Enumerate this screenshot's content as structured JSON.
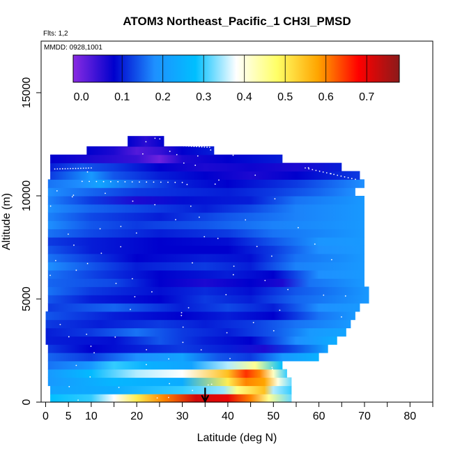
{
  "chart_data": {
    "type": "heatmap",
    "title": "ATOM3 Northeast_Pacific_1 CH3I_PMSD",
    "annotations": [
      "Flts: 1,2",
      "MMDD: 0928,1001"
    ],
    "xlabel": "Latitude (deg N)",
    "ylabel": "Altitude (m)",
    "xlim": [
      -1,
      85
    ],
    "ylim": [
      0,
      17500
    ],
    "x_ticks": [
      0,
      5,
      10,
      20,
      30,
      40,
      50,
      60,
      70,
      80
    ],
    "y_ticks": [
      0,
      5000,
      10000,
      15000
    ],
    "colorbar": {
      "range": [
        -0.02,
        0.78
      ],
      "ticks": [
        0.0,
        0.1,
        0.2,
        0.3,
        0.4,
        0.5,
        0.6,
        0.7
      ],
      "tick_labels": [
        "0.0",
        "0.1",
        "0.2",
        "0.3",
        "0.4",
        "0.5",
        "0.6",
        "0.7"
      ],
      "colors": [
        "#8a2be2",
        "#0000cd",
        "#1e90ff",
        "#00bfff",
        "#ffffff",
        "#ffff66",
        "#ffa500",
        "#ff0000",
        "#8b1a1a"
      ]
    },
    "marker": {
      "x": 35,
      "y_top": 700,
      "y_bottom": 0,
      "icon": "down-arrow-icon"
    },
    "curtain_bands": [
      {
        "y0": 0,
        "y1": 400,
        "x0": 1,
        "x1": 54,
        "stops": [
          [
            1,
            0.28
          ],
          [
            10,
            0.3
          ],
          [
            15,
            0.38
          ],
          [
            20,
            0.5
          ],
          [
            26,
            0.6
          ],
          [
            33,
            0.72
          ],
          [
            40,
            0.7
          ],
          [
            45,
            0.6
          ],
          [
            49,
            0.45
          ],
          [
            54,
            0.32
          ]
        ]
      },
      {
        "y0": 400,
        "y1": 800,
        "x0": 1,
        "x1": 54,
        "stops": [
          [
            1,
            0.22
          ],
          [
            15,
            0.24
          ],
          [
            30,
            0.3
          ],
          [
            39,
            0.34
          ],
          [
            42,
            0.46
          ],
          [
            48,
            0.55
          ],
          [
            50,
            0.35
          ],
          [
            54,
            0.3
          ]
        ]
      },
      {
        "y0": 800,
        "y1": 1200,
        "x0": 0.5,
        "x1": 54,
        "stops": [
          [
            0.5,
            0.2
          ],
          [
            15,
            0.26
          ],
          [
            30,
            0.24
          ],
          [
            40,
            0.5
          ],
          [
            44,
            0.6
          ],
          [
            48,
            0.58
          ],
          [
            51,
            0.4
          ],
          [
            54,
            0.32
          ]
        ]
      },
      {
        "y0": 1200,
        "y1": 1600,
        "x0": 0.5,
        "x1": 53,
        "stops": [
          [
            0.5,
            0.2
          ],
          [
            10,
            0.27
          ],
          [
            20,
            0.35
          ],
          [
            30,
            0.38
          ],
          [
            40,
            0.55
          ],
          [
            44,
            0.65
          ],
          [
            47,
            0.6
          ],
          [
            50,
            0.42
          ],
          [
            53,
            0.3
          ]
        ]
      },
      {
        "y0": 1600,
        "y1": 2000,
        "x0": 0.5,
        "x1": 52,
        "stops": [
          [
            0.5,
            0.16
          ],
          [
            10,
            0.2
          ],
          [
            15,
            0.3
          ],
          [
            22,
            0.25
          ],
          [
            32,
            0.22
          ],
          [
            40,
            0.35
          ],
          [
            46,
            0.45
          ],
          [
            52,
            0.28
          ]
        ]
      },
      {
        "y0": 2000,
        "y1": 2400,
        "x0": 0.5,
        "x1": 60,
        "stops": [
          [
            0.5,
            0.15
          ],
          [
            10,
            0.12
          ],
          [
            20,
            0.18
          ],
          [
            30,
            0.22
          ],
          [
            38,
            0.14
          ],
          [
            45,
            0.12
          ],
          [
            52,
            0.2
          ],
          [
            60,
            0.25
          ]
        ]
      },
      {
        "y0": 2400,
        "y1": 2800,
        "x0": 0.5,
        "x1": 62,
        "stops": [
          [
            0.5,
            0.12
          ],
          [
            10,
            0.08
          ],
          [
            20,
            0.1
          ],
          [
            30,
            0.12
          ],
          [
            40,
            0.1
          ],
          [
            48,
            0.06
          ],
          [
            53,
            0.12
          ],
          [
            62,
            0.22
          ]
        ]
      },
      {
        "y0": 2800,
        "y1": 3200,
        "x0": 0,
        "x1": 64,
        "stops": [
          [
            0,
            0.1
          ],
          [
            15,
            0.09
          ],
          [
            25,
            0.14
          ],
          [
            35,
            0.1
          ],
          [
            45,
            0.08
          ],
          [
            55,
            0.18
          ],
          [
            64,
            0.24
          ]
        ]
      },
      {
        "y0": 3200,
        "y1": 3600,
        "x0": 0,
        "x1": 66,
        "stops": [
          [
            0,
            0.1
          ],
          [
            10,
            0.12
          ],
          [
            20,
            0.16
          ],
          [
            30,
            0.12
          ],
          [
            40,
            0.1
          ],
          [
            50,
            0.14
          ],
          [
            58,
            0.2
          ],
          [
            66,
            0.22
          ]
        ]
      },
      {
        "y0": 3600,
        "y1": 4000,
        "x0": 0,
        "x1": 67,
        "stops": [
          [
            0,
            0.12
          ],
          [
            12,
            0.1
          ],
          [
            25,
            0.12
          ],
          [
            35,
            0.1
          ],
          [
            45,
            0.12
          ],
          [
            55,
            0.16
          ],
          [
            67,
            0.2
          ]
        ]
      },
      {
        "y0": 4000,
        "y1": 4400,
        "x0": 0,
        "x1": 68,
        "stops": [
          [
            0,
            0.14
          ],
          [
            15,
            0.1
          ],
          [
            30,
            0.08
          ],
          [
            40,
            0.1
          ],
          [
            50,
            0.08
          ],
          [
            60,
            0.16
          ],
          [
            68,
            0.2
          ]
        ]
      },
      {
        "y0": 4400,
        "y1": 4800,
        "x0": 0.5,
        "x1": 69,
        "stops": [
          [
            0.5,
            0.12
          ],
          [
            15,
            0.15
          ],
          [
            30,
            0.1
          ],
          [
            40,
            0.13
          ],
          [
            50,
            0.1
          ],
          [
            60,
            0.18
          ],
          [
            69,
            0.2
          ]
        ]
      },
      {
        "y0": 4800,
        "y1": 5200,
        "x0": 0.5,
        "x1": 71,
        "stops": [
          [
            0.5,
            0.14
          ],
          [
            10,
            0.1
          ],
          [
            25,
            0.08
          ],
          [
            35,
            0.12
          ],
          [
            45,
            0.1
          ],
          [
            55,
            0.15
          ],
          [
            71,
            0.2
          ]
        ]
      },
      {
        "y0": 5200,
        "y1": 5600,
        "x0": 0.5,
        "x1": 71,
        "stops": [
          [
            0.5,
            0.16
          ],
          [
            10,
            0.12
          ],
          [
            25,
            0.09
          ],
          [
            35,
            0.11
          ],
          [
            45,
            0.09
          ],
          [
            55,
            0.14
          ],
          [
            71,
            0.2
          ]
        ]
      },
      {
        "y0": 5600,
        "y1": 6000,
        "x0": 0.5,
        "x1": 70,
        "stops": [
          [
            0.5,
            0.15
          ],
          [
            15,
            0.13
          ],
          [
            25,
            0.08
          ],
          [
            35,
            0.06
          ],
          [
            45,
            0.08
          ],
          [
            52,
            0.06
          ],
          [
            58,
            0.16
          ],
          [
            70,
            0.2
          ]
        ]
      },
      {
        "y0": 6000,
        "y1": 6400,
        "x0": 0.5,
        "x1": 70,
        "stops": [
          [
            0.5,
            0.16
          ],
          [
            12,
            0.12
          ],
          [
            25,
            0.08
          ],
          [
            40,
            0.1
          ],
          [
            50,
            0.08
          ],
          [
            60,
            0.18
          ],
          [
            70,
            0.2
          ]
        ]
      },
      {
        "y0": 6400,
        "y1": 6800,
        "x0": 0.5,
        "x1": 70,
        "stops": [
          [
            0.5,
            0.18
          ],
          [
            10,
            0.14
          ],
          [
            20,
            0.1
          ],
          [
            35,
            0.12
          ],
          [
            45,
            0.1
          ],
          [
            55,
            0.17
          ],
          [
            70,
            0.2
          ]
        ]
      },
      {
        "y0": 6800,
        "y1": 7200,
        "x0": 0.5,
        "x1": 70,
        "stops": [
          [
            0.5,
            0.16
          ],
          [
            10,
            0.12
          ],
          [
            20,
            0.08
          ],
          [
            35,
            0.1
          ],
          [
            45,
            0.09
          ],
          [
            55,
            0.16
          ],
          [
            70,
            0.2
          ]
        ]
      },
      {
        "y0": 7200,
        "y1": 7600,
        "x0": 0.5,
        "x1": 70,
        "stops": [
          [
            0.5,
            0.14
          ],
          [
            10,
            0.1
          ],
          [
            25,
            0.08
          ],
          [
            40,
            0.08
          ],
          [
            50,
            0.12
          ],
          [
            60,
            0.18
          ],
          [
            70,
            0.2
          ]
        ]
      },
      {
        "y0": 7600,
        "y1": 8000,
        "x0": 0.5,
        "x1": 70,
        "stops": [
          [
            0.5,
            0.12
          ],
          [
            10,
            0.1
          ],
          [
            25,
            0.08
          ],
          [
            40,
            0.09
          ],
          [
            50,
            0.14
          ],
          [
            60,
            0.19
          ],
          [
            70,
            0.2
          ]
        ]
      },
      {
        "y0": 8000,
        "y1": 8400,
        "x0": 0.5,
        "x1": 70,
        "stops": [
          [
            0.5,
            0.16
          ],
          [
            10,
            0.13
          ],
          [
            25,
            0.1
          ],
          [
            40,
            0.12
          ],
          [
            50,
            0.16
          ],
          [
            70,
            0.2
          ]
        ]
      },
      {
        "y0": 8400,
        "y1": 8800,
        "x0": 0.5,
        "x1": 70,
        "stops": [
          [
            0.5,
            0.18
          ],
          [
            10,
            0.14
          ],
          [
            20,
            0.12
          ],
          [
            35,
            0.14
          ],
          [
            50,
            0.17
          ],
          [
            70,
            0.2
          ]
        ]
      },
      {
        "y0": 8800,
        "y1": 9200,
        "x0": 0.5,
        "x1": 70,
        "stops": [
          [
            0.5,
            0.17
          ],
          [
            10,
            0.13
          ],
          [
            25,
            0.1
          ],
          [
            40,
            0.14
          ],
          [
            55,
            0.17
          ],
          [
            70,
            0.2
          ]
        ]
      },
      {
        "y0": 9200,
        "y1": 9600,
        "x0": 0.5,
        "x1": 70,
        "stops": [
          [
            0.5,
            0.18
          ],
          [
            10,
            0.15
          ],
          [
            20,
            0.13
          ],
          [
            35,
            0.1
          ],
          [
            45,
            0.13
          ],
          [
            55,
            0.17
          ],
          [
            70,
            0.2
          ]
        ]
      },
      {
        "y0": 9600,
        "y1": 10000,
        "x0": 0.5,
        "x1": 70,
        "stops": [
          [
            0.5,
            0.17
          ],
          [
            10,
            0.12
          ],
          [
            20,
            0.06
          ],
          [
            30,
            0.09
          ],
          [
            45,
            0.1
          ],
          [
            55,
            0.16
          ],
          [
            70,
            0.2
          ]
        ]
      },
      {
        "y0": 10000,
        "y1": 10400,
        "x0": 0.5,
        "x1": 68,
        "stops": [
          [
            0.5,
            0.18
          ],
          [
            10,
            0.15
          ],
          [
            20,
            0.12
          ],
          [
            30,
            0.11
          ],
          [
            40,
            0.1
          ],
          [
            50,
            0.12
          ],
          [
            60,
            0.15
          ],
          [
            68,
            0.18
          ]
        ]
      },
      {
        "y0": 10400,
        "y1": 10800,
        "x0": 0.5,
        "x1": 70,
        "stops": [
          [
            0.5,
            0.16
          ],
          [
            8,
            0.18
          ],
          [
            12,
            0.22
          ],
          [
            20,
            0.15
          ],
          [
            30,
            0.1
          ],
          [
            40,
            0.08
          ],
          [
            55,
            0.12
          ],
          [
            70,
            0.18
          ]
        ]
      },
      {
        "y0": 10800,
        "y1": 11200,
        "x0": 1,
        "x1": 69,
        "stops": [
          [
            1,
            0.12
          ],
          [
            10,
            0.2
          ],
          [
            15,
            0.14
          ],
          [
            25,
            0.1
          ],
          [
            35,
            0.08
          ],
          [
            45,
            0.06
          ],
          [
            55,
            0.08
          ],
          [
            69,
            0.12
          ]
        ]
      },
      {
        "y0": 11200,
        "y1": 11600,
        "x0": 1,
        "x1": 65,
        "stops": [
          [
            1,
            0.1
          ],
          [
            8,
            0.14
          ],
          [
            15,
            0.12
          ],
          [
            25,
            0.08
          ],
          [
            35,
            0.06
          ],
          [
            45,
            0.07
          ],
          [
            55,
            0.06
          ],
          [
            65,
            0.1
          ]
        ]
      },
      {
        "y0": 11600,
        "y1": 12000,
        "x0": 1,
        "x1": 52,
        "stops": [
          [
            1,
            0.08
          ],
          [
            10,
            0.06
          ],
          [
            20,
            0.04
          ],
          [
            25,
            0.0
          ],
          [
            30,
            0.06
          ],
          [
            40,
            0.08
          ],
          [
            52,
            0.1
          ]
        ]
      },
      {
        "y0": 12000,
        "y1": 12400,
        "x0": 9,
        "x1": 37,
        "stops": [
          [
            9,
            0.08
          ],
          [
            15,
            0.06
          ],
          [
            20,
            0.02
          ],
          [
            25,
            0.04
          ],
          [
            30,
            0.08
          ],
          [
            37,
            0.1
          ]
        ]
      },
      {
        "y0": 12400,
        "y1": 12900,
        "x0": 18,
        "x1": 26,
        "stops": [
          [
            18,
            0.08
          ],
          [
            22,
            0.05
          ],
          [
            26,
            0.08
          ]
        ]
      }
    ]
  }
}
